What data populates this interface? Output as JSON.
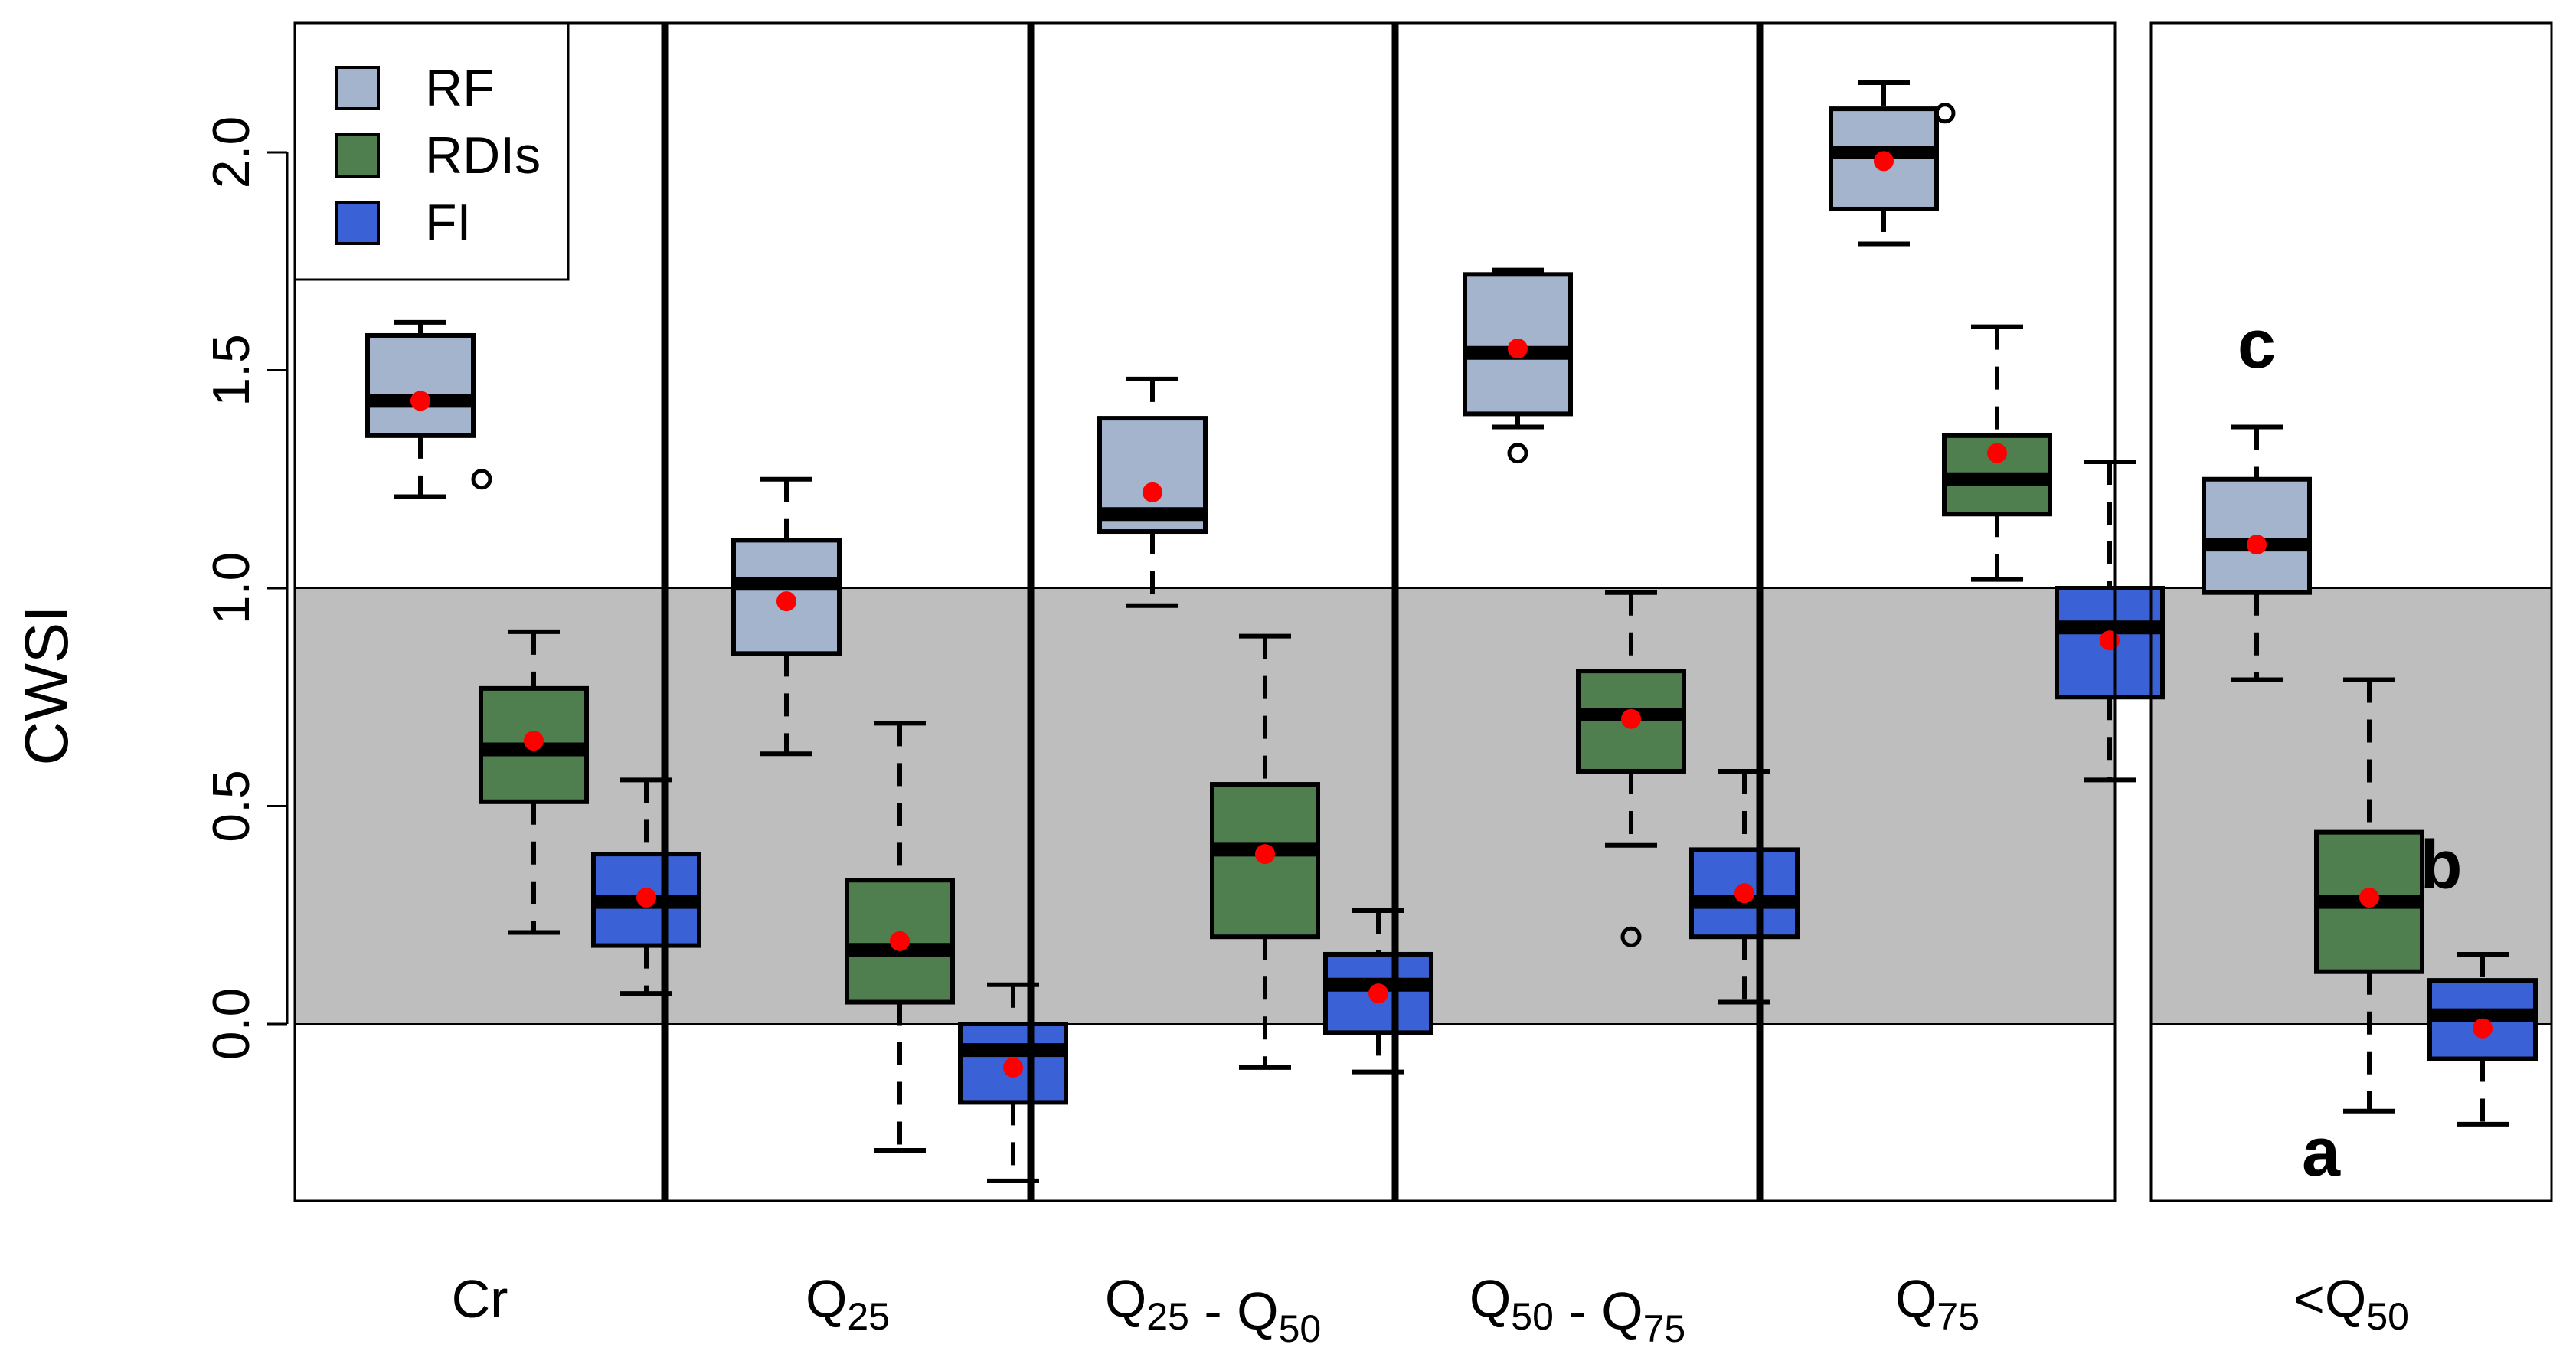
{
  "chart_data": {
    "type": "box",
    "ylabel": "CWSI",
    "ylim": [
      -0.4,
      2.3
    ],
    "yticks": [
      0.0,
      0.5,
      1.0,
      1.5,
      2.0
    ],
    "ytick_labels": [
      "0.0",
      "0.5",
      "1.0",
      "1.5",
      "2.0"
    ],
    "shaded_band": [
      0.0,
      1.0
    ],
    "shaded_color": "#bebebe",
    "legend": {
      "position": "top-left",
      "entries": [
        {
          "name": "RF",
          "color": "#a3b4cc"
        },
        {
          "name": "RDIs",
          "color": "#4f7f4f"
        },
        {
          "name": "FI",
          "color": "#3a62d6"
        }
      ]
    },
    "mean_marker_color": "#ff0000",
    "panels": [
      {
        "label": "Cr",
        "groups": [
          {
            "series": "RF",
            "whisker_low": 1.21,
            "q1": 1.35,
            "median": 1.43,
            "q3": 1.58,
            "whisker_high": 1.61,
            "mean": 1.43,
            "outliers": [
              1.25
            ]
          },
          {
            "series": "RDIs",
            "whisker_low": 0.21,
            "q1": 0.51,
            "median": 0.63,
            "q3": 0.77,
            "whisker_high": 0.9,
            "mean": 0.65,
            "outliers": []
          },
          {
            "series": "FI",
            "whisker_low": 0.07,
            "q1": 0.18,
            "median": 0.28,
            "q3": 0.39,
            "whisker_high": 0.56,
            "mean": 0.29,
            "outliers": []
          }
        ]
      },
      {
        "label": "Q",
        "label_sub": "25",
        "groups": [
          {
            "series": "RF",
            "whisker_low": 0.62,
            "q1": 0.85,
            "median": 1.01,
            "q3": 1.11,
            "whisker_high": 1.25,
            "mean": 0.97,
            "outliers": []
          },
          {
            "series": "RDIs",
            "whisker_low": -0.29,
            "q1": 0.05,
            "median": 0.17,
            "q3": 0.33,
            "whisker_high": 0.69,
            "mean": 0.19,
            "outliers": []
          },
          {
            "series": "FI",
            "whisker_low": -0.36,
            "q1": -0.18,
            "median": -0.06,
            "q3": 0.0,
            "whisker_high": 0.09,
            "mean": -0.1,
            "outliers": []
          }
        ]
      },
      {
        "label": "Q",
        "label_sub": "25",
        "label_sep": " - ",
        "label2": "Q",
        "label2_sub": "50",
        "groups": [
          {
            "series": "RF",
            "whisker_low": 0.96,
            "q1": 1.13,
            "median": 1.17,
            "q3": 1.39,
            "whisker_high": 1.48,
            "mean": 1.22,
            "outliers": []
          },
          {
            "series": "RDIs",
            "whisker_low": -0.1,
            "q1": 0.2,
            "median": 0.4,
            "q3": 0.55,
            "whisker_high": 0.89,
            "mean": 0.39,
            "outliers": []
          },
          {
            "series": "FI",
            "whisker_low": -0.11,
            "q1": -0.02,
            "median": 0.09,
            "q3": 0.16,
            "whisker_high": 0.26,
            "mean": 0.07,
            "outliers": []
          }
        ]
      },
      {
        "label": "Q",
        "label_sub": "50",
        "label_sep": " - ",
        "label2": "Q",
        "label2_sub": "75",
        "groups": [
          {
            "series": "RF",
            "whisker_low": 1.37,
            "q1": 1.4,
            "median": 1.54,
            "q3": 1.72,
            "whisker_high": 1.73,
            "mean": 1.55,
            "outliers": [
              1.31
            ]
          },
          {
            "series": "RDIs",
            "whisker_low": 0.41,
            "q1": 0.58,
            "median": 0.71,
            "q3": 0.81,
            "whisker_high": 0.99,
            "mean": 0.7,
            "outliers": [
              0.2
            ]
          },
          {
            "series": "FI",
            "whisker_low": 0.05,
            "q1": 0.2,
            "median": 0.28,
            "q3": 0.4,
            "whisker_high": 0.58,
            "mean": 0.3,
            "outliers": []
          }
        ]
      },
      {
        "label": "Q",
        "label_sub": "75",
        "groups": [
          {
            "series": "RF",
            "whisker_low": 1.79,
            "q1": 1.87,
            "median": 2.0,
            "q3": 2.1,
            "whisker_high": 2.16,
            "mean": 1.98,
            "outliers": [
              2.09
            ]
          },
          {
            "series": "RDIs",
            "whisker_low": 1.02,
            "q1": 1.17,
            "median": 1.25,
            "q3": 1.35,
            "whisker_high": 1.6,
            "mean": 1.31,
            "outliers": []
          },
          {
            "series": "FI",
            "whisker_low": 0.56,
            "q1": 0.75,
            "median": 0.91,
            "q3": 1.0,
            "whisker_high": 1.29,
            "mean": 0.88,
            "outliers": []
          }
        ]
      },
      {
        "label": "<Q",
        "label_sub": "50",
        "groups": [
          {
            "series": "RF",
            "whisker_low": 0.79,
            "q1": 0.99,
            "median": 1.1,
            "q3": 1.25,
            "whisker_high": 1.37,
            "mean": 1.1,
            "outliers": [],
            "letter": "c"
          },
          {
            "series": "RDIs",
            "whisker_low": -0.2,
            "q1": 0.12,
            "median": 0.28,
            "q3": 0.44,
            "whisker_high": 0.79,
            "mean": 0.29,
            "outliers": [],
            "letter": "a"
          },
          {
            "series": "FI",
            "whisker_low": -0.23,
            "q1": -0.08,
            "median": 0.02,
            "q3": 0.1,
            "whisker_high": 0.16,
            "mean": -0.01,
            "outliers": [],
            "letter": "b"
          }
        ]
      }
    ]
  }
}
